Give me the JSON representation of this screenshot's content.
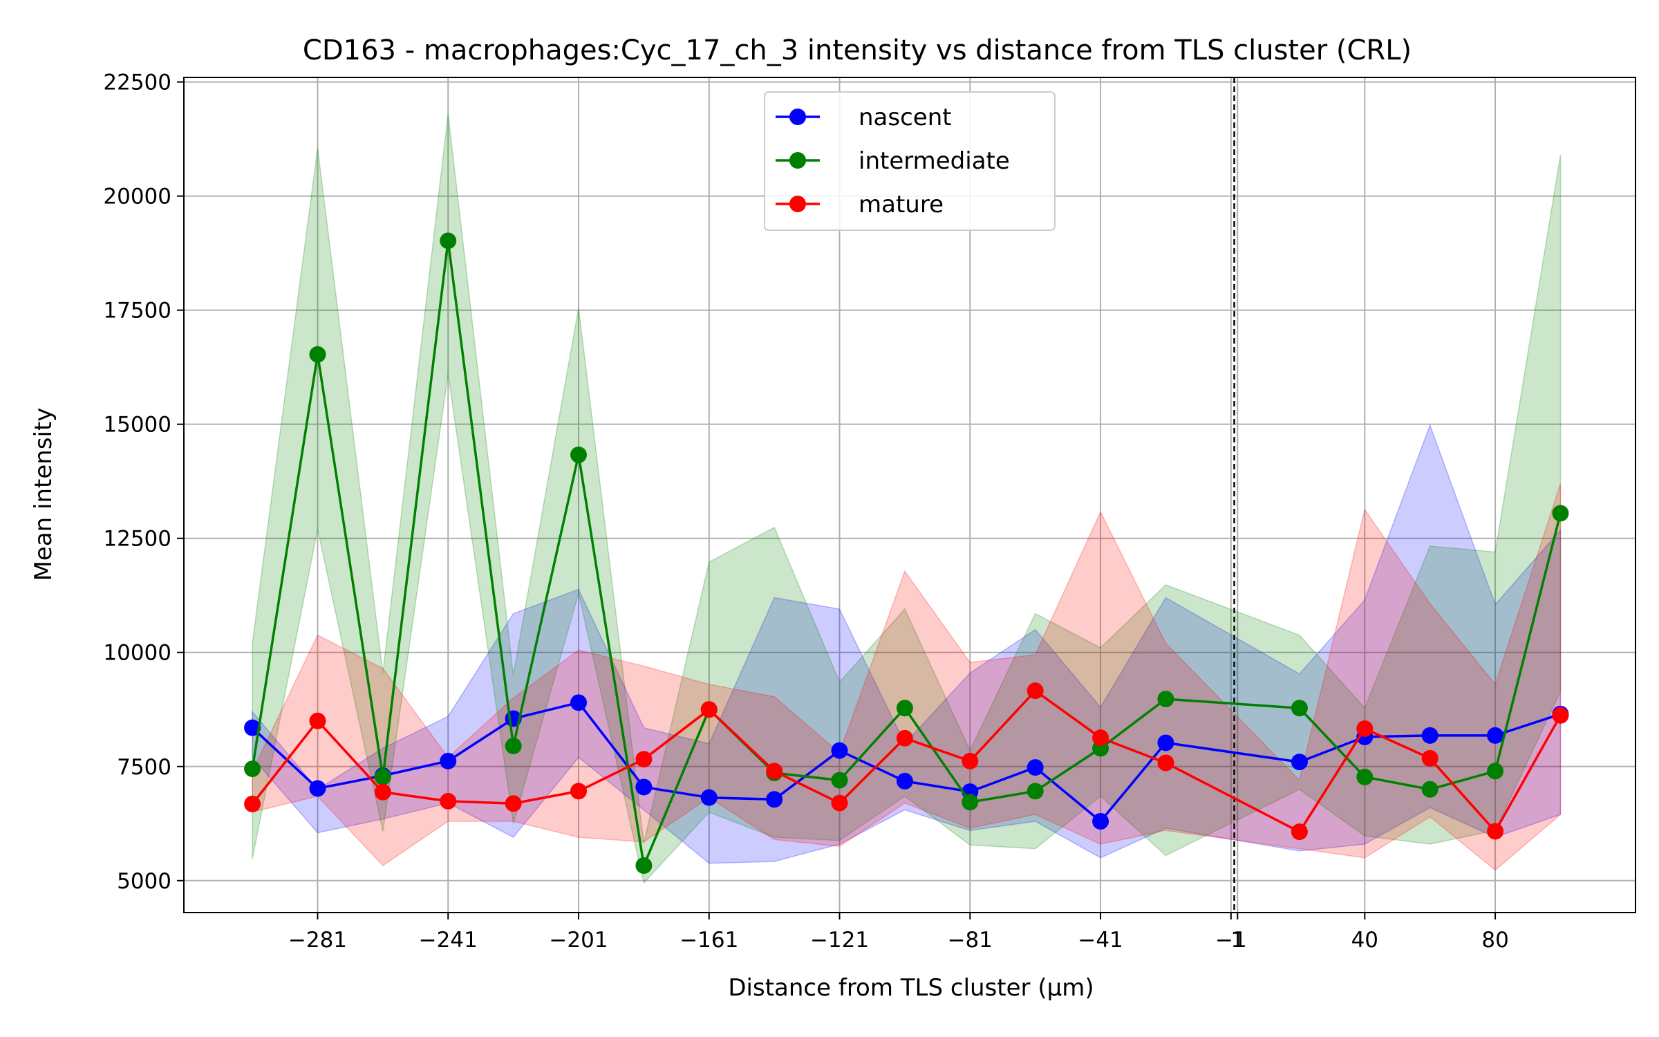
{
  "chart_data": {
    "type": "line",
    "title": "CD163 - macrophages:Cyc_17_ch_3 intensity vs distance from TLS cluster (CRL)",
    "xlabel": "Distance from TLS cluster (μm)",
    "ylabel": "Mean intensity",
    "xlim": [
      -322,
      123
    ],
    "ylim": [
      4300,
      22600
    ],
    "grid": true,
    "legend_position": "upper center",
    "x_ticks": [
      -281,
      -241,
      -201,
      -161,
      -121,
      -81,
      -41,
      -1,
      1,
      40,
      80
    ],
    "x_tick_labels": [
      "−281",
      "−241",
      "−201",
      "−161",
      "−121",
      "−81",
      "−41",
      "−1",
      "1",
      "40",
      "80"
    ],
    "y_ticks": [
      5000,
      7500,
      10000,
      12500,
      15000,
      17500,
      20000,
      22500
    ],
    "y_tick_labels": [
      "5000",
      "7500",
      "10000",
      "12500",
      "15000",
      "17500",
      "20000",
      "22500"
    ],
    "reference_line_x": 0,
    "series": [
      {
        "name": "nascent",
        "color": "#0000ff",
        "x": [
          -301,
          -281,
          -261,
          -241,
          -221,
          -201,
          -181,
          -161,
          -141,
          -121,
          -101,
          -81,
          -61,
          -41,
          -21,
          20,
          40,
          60,
          80,
          100
        ],
        "y": [
          8350,
          7020,
          7300,
          7620,
          8550,
          8900,
          7050,
          6820,
          6780,
          7850,
          7180,
          6950,
          7480,
          6300,
          8020,
          7600,
          8150,
          8180,
          8180,
          8650
        ],
        "lower": [
          7700,
          6050,
          6350,
          6700,
          5950,
          7700,
          6550,
          5380,
          5420,
          5800,
          6550,
          6100,
          6300,
          5500,
          6150,
          5650,
          5800,
          6600,
          5950,
          6450
        ],
        "upper": [
          8700,
          7000,
          7900,
          8600,
          10850,
          11380,
          8350,
          8000,
          11200,
          10950,
          8000,
          9550,
          10500,
          8800,
          11200,
          9530,
          11150,
          14980,
          11050,
          12680
        ]
      },
      {
        "name": "intermediate",
        "color": "#008000",
        "x": [
          -301,
          -281,
          -261,
          -241,
          -221,
          -201,
          -181,
          -161,
          -141,
          -121,
          -101,
          -81,
          -61,
          -41,
          -21,
          20,
          40,
          60,
          80,
          100
        ],
        "y": [
          7450,
          16530,
          7270,
          19020,
          7950,
          14330,
          5330,
          8750,
          7360,
          7200,
          8780,
          6720,
          6960,
          7900,
          8980,
          8780,
          7270,
          7000,
          7400,
          13050
        ],
        "lower": [
          5480,
          12700,
          6080,
          16100,
          6250,
          11300,
          4950,
          6500,
          5950,
          5880,
          6850,
          5780,
          5700,
          6850,
          5550,
          7000,
          5980,
          5800,
          6100,
          9150
        ],
        "upper": [
          10200,
          21050,
          9550,
          21800,
          9500,
          17550,
          5820,
          11980,
          12740,
          9350,
          10950,
          7850,
          10850,
          10100,
          11480,
          10380,
          8780,
          12330,
          12200,
          20900
        ]
      },
      {
        "name": "mature",
        "color": "#ff0000",
        "x": [
          -301,
          -281,
          -261,
          -241,
          -221,
          -201,
          -181,
          -161,
          -141,
          -121,
          -101,
          -81,
          -61,
          -41,
          -21,
          20,
          40,
          60,
          80,
          100
        ],
        "y": [
          6680,
          8500,
          6940,
          6740,
          6690,
          6960,
          7660,
          8750,
          7400,
          6700,
          8120,
          7620,
          9160,
          8130,
          7580,
          6070,
          8330,
          7680,
          6080,
          8620
        ],
        "lower": [
          6500,
          6850,
          5330,
          6300,
          6300,
          5950,
          5850,
          6820,
          5900,
          5750,
          6700,
          6150,
          6450,
          5800,
          6100,
          5700,
          5500,
          6400,
          5230,
          6450
        ],
        "upper": [
          7400,
          10380,
          9650,
          7700,
          9000,
          10050,
          9700,
          9300,
          9030,
          7800,
          11780,
          9780,
          9950,
          13080,
          10200,
          7200,
          13130,
          11070,
          9300,
          13700
        ]
      }
    ]
  }
}
